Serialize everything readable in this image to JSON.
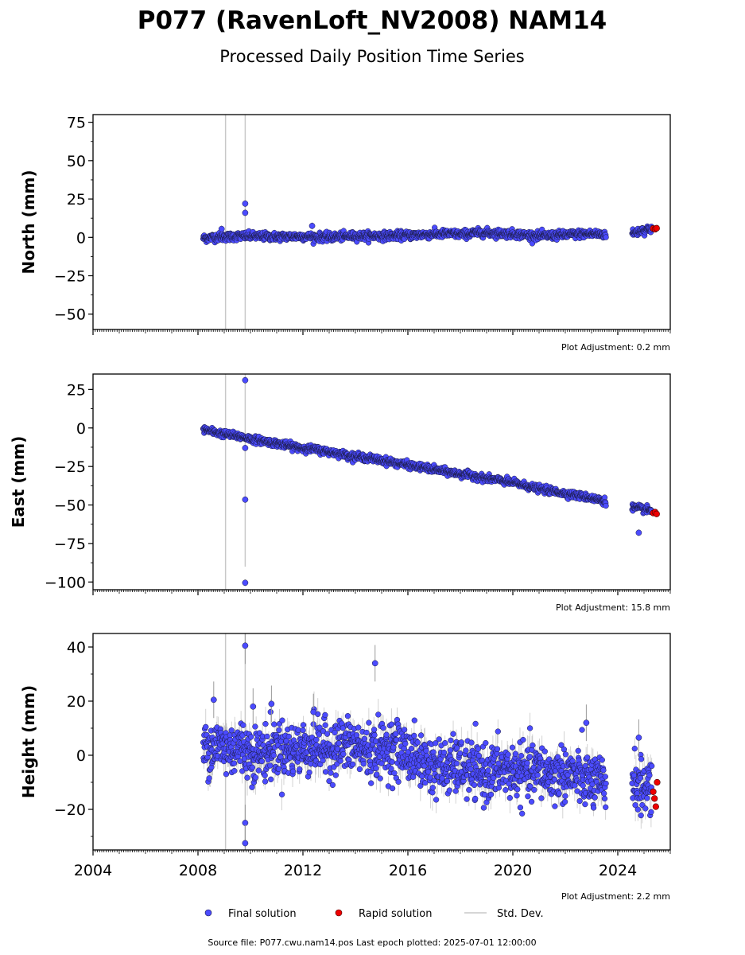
{
  "title": "P077 (RavenLoft_NV2008) NAM14",
  "subtitle": "Processed Daily Position Time Series",
  "footer": "Source file: P077.cwu.nam14.pos  Last epoch plotted: 2025-07-01 12:00:00",
  "legend": {
    "final": "Final solution",
    "rapid": "Rapid solution",
    "std": "Std. Dev."
  },
  "colors": {
    "final": "#4b4bff",
    "rapid": "#ee0000",
    "std": "#c8c8c8",
    "marker_edge": "#1a1a40"
  },
  "chart_data": [
    {
      "type": "scatter",
      "ylabel": "North (mm)",
      "adjustment": "Plot Adjustment: 0.2 mm",
      "xlim": [
        2004,
        2026
      ],
      "ylim": [
        -60,
        80
      ],
      "yticks": [
        -50,
        -25,
        0,
        25,
        50,
        75
      ],
      "ytick_labels": [
        "−50",
        "−25",
        "0",
        "25",
        "50",
        "75"
      ],
      "xticks": [
        2004,
        2008,
        2012,
        2016,
        2020,
        2024
      ],
      "show_xtick_labels": false,
      "final": {
        "x": [
          2008.25,
          2008.7,
          2009.2,
          2009.6,
          2010.0,
          2010.5,
          2011.0,
          2011.5,
          2012.0,
          2012.5,
          2013.0,
          2013.5,
          2014.0,
          2014.5,
          2015.0,
          2015.5,
          2016.0,
          2016.5,
          2017.0,
          2017.5,
          2018.0,
          2018.5,
          2019.0,
          2019.5,
          2020.0,
          2020.5,
          2021.0,
          2021.5,
          2022.0,
          2022.5,
          2023.0,
          2023.5,
          2024.6,
          2024.9,
          2025.2
        ],
        "y": [
          -0.5,
          0.2,
          0.4,
          0.9,
          0.8,
          0.6,
          0.5,
          0.6,
          0.7,
          0.3,
          0.1,
          0.6,
          0.9,
          1.0,
          0.9,
          1.2,
          1.3,
          1.7,
          2.1,
          2.4,
          2.0,
          2.8,
          3.1,
          2.6,
          2.3,
          1.5,
          1.0,
          1.2,
          1.6,
          2.2,
          2.3,
          2.0,
          2.5,
          4.5,
          5.5
        ]
      },
      "rapid": {
        "x": [
          2025.35,
          2025.42,
          2025.48
        ],
        "y": [
          5.8,
          5.3,
          6.0
        ]
      },
      "outliers": {
        "x": [
          2008.9,
          2009.8,
          2009.8,
          2012.35
        ],
        "y": [
          5.5,
          22.0,
          16.0,
          7.5
        ]
      },
      "big_errors": [
        {
          "x": 2009.05,
          "y0": -60,
          "y1": 80
        },
        {
          "x": 2009.8,
          "y0": -60,
          "y1": 80
        }
      ],
      "noise": 1.3,
      "std": 1.5
    },
    {
      "type": "scatter",
      "ylabel": "East (mm)",
      "adjustment": "Plot Adjustment: 15.8 mm",
      "xlim": [
        2004,
        2026
      ],
      "ylim": [
        -105,
        35
      ],
      "yticks": [
        -100,
        -75,
        -50,
        -25,
        0,
        25
      ],
      "ytick_labels": [
        "−100",
        "−75",
        "−50",
        "−25",
        "0",
        "25"
      ],
      "xticks": [
        2004,
        2008,
        2012,
        2016,
        2020,
        2024
      ],
      "show_xtick_labels": false,
      "final": {
        "x": [
          2008.25,
          2008.7,
          2009.2,
          2009.6,
          2010.0,
          2010.5,
          2011.0,
          2011.5,
          2012.0,
          2012.5,
          2013.0,
          2013.5,
          2014.0,
          2014.5,
          2015.0,
          2015.5,
          2016.0,
          2016.5,
          2017.0,
          2017.5,
          2018.0,
          2018.5,
          2019.0,
          2019.5,
          2020.0,
          2020.5,
          2021.0,
          2021.5,
          2022.0,
          2022.5,
          2023.0,
          2023.5,
          2024.6,
          2024.9,
          2025.2
        ],
        "y": [
          -1.0,
          -3.0,
          -4.5,
          -5.5,
          -7.0,
          -8.5,
          -10.0,
          -11.5,
          -13.0,
          -14.0,
          -15.5,
          -17.0,
          -18.5,
          -19.5,
          -21.0,
          -22.5,
          -24.0,
          -25.5,
          -27.0,
          -28.5,
          -30.0,
          -31.0,
          -33.0,
          -34.0,
          -35.5,
          -37.5,
          -39.5,
          -41.0,
          -42.5,
          -44.0,
          -45.5,
          -47.5,
          -51.5,
          -52.5,
          -53.5
        ]
      },
      "rapid": {
        "x": [
          2025.35,
          2025.42,
          2025.48
        ],
        "y": [
          -55.2,
          -54.6,
          -55.8
        ]
      },
      "outliers": {
        "x": [
          2009.8,
          2009.8,
          2009.8,
          2009.8,
          2024.8
        ],
        "y": [
          31.0,
          -13.0,
          -46.5,
          -100.5,
          -68.0
        ]
      },
      "big_errors": [
        {
          "x": 2009.05,
          "y0": -105,
          "y1": 35
        },
        {
          "x": 2009.8,
          "y0": -90,
          "y1": 35
        }
      ],
      "noise": 1.1,
      "std": 1.4
    },
    {
      "type": "scatter",
      "ylabel": "Height (mm)",
      "adjustment": "Plot Adjustment: 2.2 mm",
      "xlim": [
        2004,
        2026
      ],
      "ylim": [
        -35,
        45
      ],
      "yticks": [
        -20,
        0,
        20,
        40
      ],
      "ytick_labels": [
        "−20",
        "0",
        "20",
        "40"
      ],
      "xticks": [
        2004,
        2008,
        2012,
        2016,
        2020,
        2024
      ],
      "xtick_labels": [
        "2004",
        "2008",
        "2012",
        "2016",
        "2020",
        "2024"
      ],
      "show_xtick_labels": true,
      "final": {
        "x": [
          2008.25,
          2008.7,
          2009.2,
          2009.6,
          2010.0,
          2010.5,
          2011.0,
          2011.5,
          2012.0,
          2012.5,
          2013.0,
          2013.5,
          2014.0,
          2014.5,
          2015.0,
          2015.5,
          2016.0,
          2016.5,
          2017.0,
          2017.5,
          2018.0,
          2018.5,
          2019.0,
          2019.5,
          2020.0,
          2020.5,
          2021.0,
          2021.5,
          2022.0,
          2022.5,
          2023.0,
          2023.5,
          2024.6,
          2024.9,
          2025.2
        ],
        "y": [
          3.0,
          4.0,
          2.0,
          3.5,
          1.0,
          0.5,
          3.0,
          1.5,
          2.5,
          3.5,
          2.0,
          4.0,
          3.0,
          1.5,
          2.0,
          3.0,
          0.5,
          -2.0,
          -4.0,
          -5.0,
          -4.0,
          -6.0,
          -7.0,
          -5.0,
          -6.0,
          -7.0,
          -5.5,
          -7.5,
          -6.5,
          -8.0,
          -10.0,
          -11.0,
          -9.0,
          -12.0,
          -11.0
        ]
      },
      "rapid": {
        "x": [
          2025.35,
          2025.4,
          2025.45,
          2025.5
        ],
        "y": [
          -13.5,
          -16.0,
          -19.0,
          -10.0
        ]
      },
      "outliers": {
        "x": [
          2008.6,
          2009.8,
          2009.8,
          2009.8,
          2014.75,
          2010.1,
          2010.8,
          2012.4,
          2022.8,
          2024.8
        ],
        "y": [
          20.5,
          40.5,
          -25.0,
          -32.5,
          34.0,
          18.0,
          19.0,
          16.0,
          12.0,
          6.5
        ]
      },
      "big_errors": [
        {
          "x": 2009.05,
          "y0": -35,
          "y1": 45
        },
        {
          "x": 2009.8,
          "y0": -35,
          "y1": 45
        }
      ],
      "noise": 5.0,
      "std": 4.5
    }
  ]
}
